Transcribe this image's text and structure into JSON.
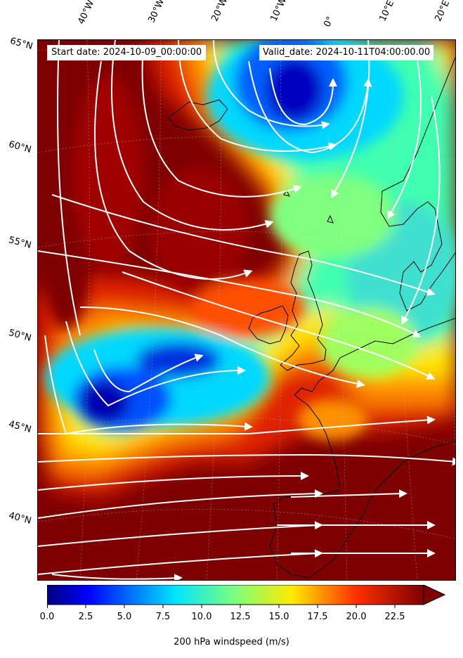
{
  "start_date": "Start date: 2024-10-09_00:00:00",
  "valid_date": "Valid_date: 2024-10-11T04:00:00.00",
  "longitude_labels": [
    "40°W",
    "30°W",
    "20°W",
    "10°W",
    "0°",
    "10°E",
    "20°E"
  ],
  "latitude_labels": [
    "65°N",
    "60°N",
    "55°N",
    "50°N",
    "45°N",
    "40°N"
  ],
  "colorbar": {
    "label": "200 hPa windspeed (m/s)",
    "ticks": [
      "0.0",
      "2.5",
      "5.0",
      "7.5",
      "10.0",
      "12.5",
      "15.0",
      "17.5",
      "20.0",
      "22.5"
    ],
    "min": 0,
    "max": 25,
    "extend": "max",
    "colormap": "jet"
  },
  "colors": {
    "max_wind": "#7f0000",
    "streamline": "#ffffff",
    "coastline": "#000000"
  }
}
